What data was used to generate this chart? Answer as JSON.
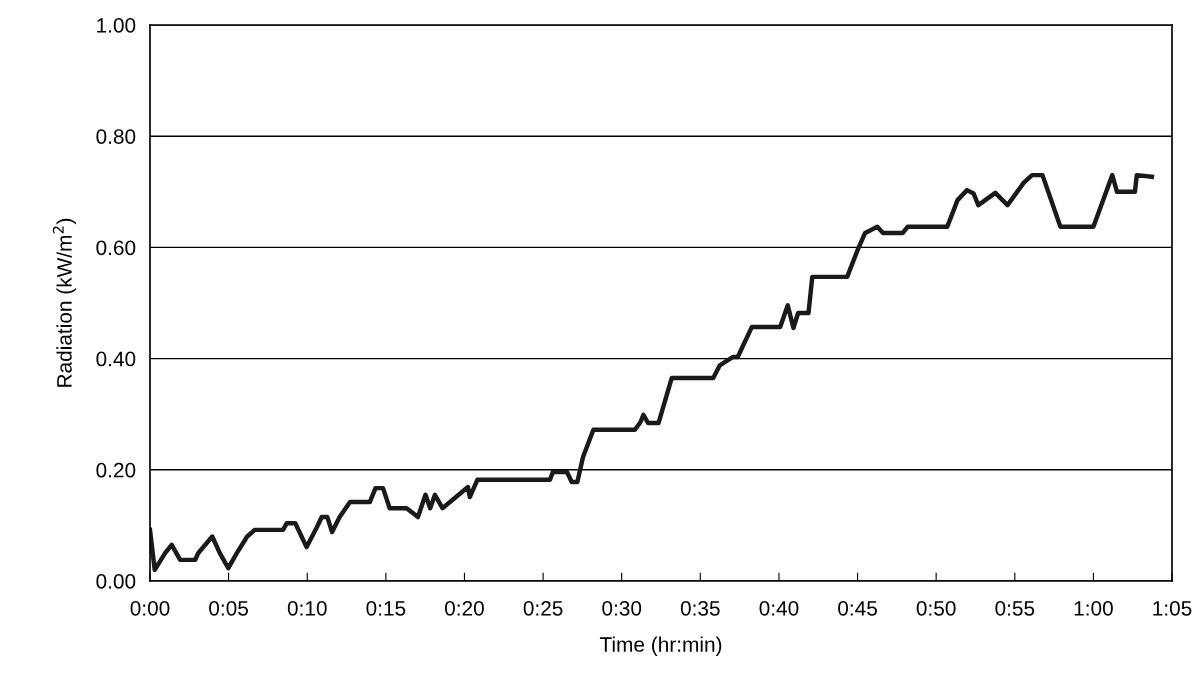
{
  "chart_data": {
    "type": "line",
    "xlabel": "Time (hr:min)",
    "ylabel": "Radiation (kW/m$^{2}$)",
    "x": [
      0,
      0.005,
      0.016,
      0.023,
      0.032,
      0.048,
      0.051,
      0.066,
      0.074,
      0.083,
      0.092,
      0.103,
      0.111,
      0.141,
      0.145,
      0.154,
      0.166,
      0.177,
      0.182,
      0.188,
      0.193,
      0.201,
      0.212,
      0.233,
      0.239,
      0.247,
      0.254,
      0.272,
      0.284,
      0.292,
      0.297,
      0.302,
      0.31,
      0.318,
      0.337,
      0.339,
      0.347,
      0.424,
      0.427,
      0.442,
      0.447,
      0.453,
      0.459,
      0.47,
      0.514,
      0.52,
      0.523,
      0.528,
      0.539,
      0.553,
      0.597,
      0.604,
      0.618,
      0.623,
      0.638,
      0.668,
      0.676,
      0.682,
      0.687,
      0.698,
      0.702,
      0.739,
      0.75,
      0.758,
      0.771,
      0.777,
      0.798,
      0.803,
      0.845,
      0.856,
      0.866,
      0.873,
      0.878,
      0.896,
      0.909,
      0.926,
      0.935,
      0.946,
      0.965,
      1.0,
      1.02,
      1.025,
      1.044,
      1.046,
      1.062
    ],
    "series": [
      {
        "color": "#1a1a1a",
        "values": [
          0.092,
          0.02,
          0.05,
          0.065,
          0.038,
          0.038,
          0.05,
          0.08,
          0.05,
          0.023,
          0.05,
          0.08,
          0.092,
          0.092,
          0.104,
          0.104,
          0.061,
          0.097,
          0.115,
          0.115,
          0.088,
          0.115,
          0.142,
          0.142,
          0.167,
          0.167,
          0.131,
          0.131,
          0.115,
          0.155,
          0.131,
          0.155,
          0.131,
          0.142,
          0.169,
          0.151,
          0.182,
          0.182,
          0.196,
          0.196,
          0.178,
          0.178,
          0.223,
          0.272,
          0.272,
          0.286,
          0.299,
          0.284,
          0.284,
          0.365,
          0.365,
          0.388,
          0.403,
          0.403,
          0.457,
          0.457,
          0.496,
          0.455,
          0.482,
          0.482,
          0.547,
          0.547,
          0.595,
          0.626,
          0.637,
          0.626,
          0.626,
          0.637,
          0.637,
          0.685,
          0.703,
          0.697,
          0.676,
          0.698,
          0.676,
          0.716,
          0.73,
          0.73,
          0.637,
          0.637,
          0.73,
          0.7,
          0.7,
          0.73,
          0.727
        ]
      }
    ],
    "xlim": [
      0,
      1.0833
    ],
    "xticks": [
      {
        "value": 0,
        "label": "0:00"
      },
      {
        "value": 0.0833,
        "label": "0:05"
      },
      {
        "value": 0.1667,
        "label": "0:10"
      },
      {
        "value": 0.25,
        "label": "0:15"
      },
      {
        "value": 0.3333,
        "label": "0:20"
      },
      {
        "value": 0.4167,
        "label": "0:25"
      },
      {
        "value": 0.5,
        "label": "0:30"
      },
      {
        "value": 0.5833,
        "label": "0:35"
      },
      {
        "value": 0.6667,
        "label": "0:40"
      },
      {
        "value": 0.75,
        "label": "0:45"
      },
      {
        "value": 0.8333,
        "label": "0:50"
      },
      {
        "value": 0.9167,
        "label": "0:55"
      },
      {
        "value": 1.0,
        "label": "1:00"
      },
      {
        "value": 1.0833,
        "label": "1:05"
      }
    ],
    "ylim": [
      0,
      1
    ],
    "yticks": [
      {
        "value": 0,
        "label": "0.00"
      },
      {
        "value": 0.2,
        "label": "0.20"
      },
      {
        "value": 0.4,
        "label": "0.40"
      },
      {
        "value": 0.6,
        "label": "0.60"
      },
      {
        "value": 0.8,
        "label": "0.80"
      },
      {
        "value": 1,
        "label": "1.00"
      }
    ],
    "grid": "y",
    "legend": false,
    "marker": "none",
    "line_style": "solid"
  }
}
